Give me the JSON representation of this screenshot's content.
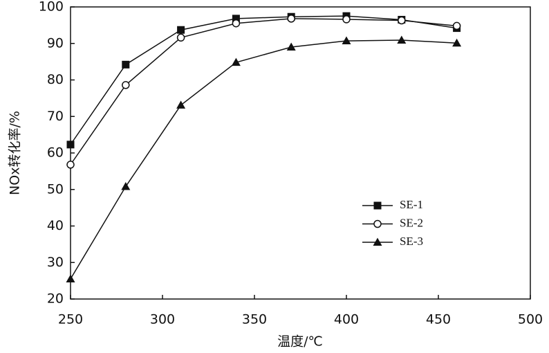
{
  "chart_data": {
    "type": "line",
    "x_label": "温度/℃",
    "y_label": "NOx转化率/%",
    "x": [
      250,
      280,
      310,
      340,
      370,
      400,
      430,
      460
    ],
    "series": [
      {
        "name": "SE-1",
        "color": "#111111",
        "marker": "square",
        "values": [
          62.3,
          84.2,
          93.7,
          96.8,
          97.3,
          97.5,
          96.5,
          94.2
        ]
      },
      {
        "name": "SE-2",
        "color": "#111111",
        "marker": "circle",
        "values": [
          56.8,
          78.6,
          91.6,
          95.5,
          96.8,
          96.6,
          96.3,
          94.8
        ]
      },
      {
        "name": "SE-3",
        "color": "#111111",
        "marker": "triangle",
        "values": [
          25.5,
          50.8,
          73.1,
          84.8,
          89.0,
          90.7,
          90.9,
          90.1
        ]
      }
    ],
    "xlim": [
      250,
      500
    ],
    "xticks": [
      250,
      300,
      350,
      400,
      450,
      500
    ],
    "ylim": [
      20,
      100
    ],
    "yticks": [
      20,
      30,
      40,
      50,
      60,
      70,
      80,
      90,
      100
    ],
    "grid": false,
    "legend": "lower right"
  }
}
